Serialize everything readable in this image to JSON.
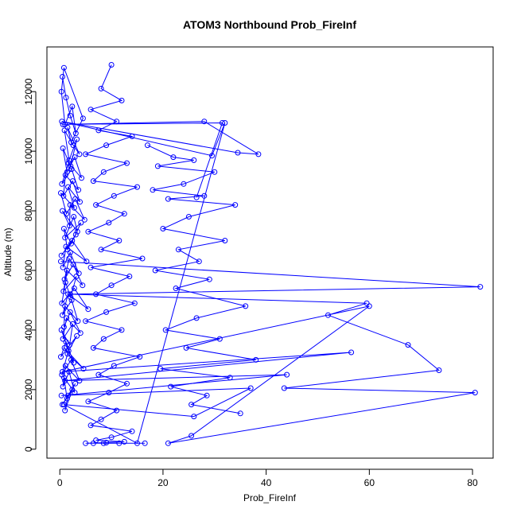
{
  "chart_data": {
    "type": "line",
    "title": "ATOM3 Northbound Prob_FireInf",
    "xlabel": "Prob_FireInf",
    "ylabel": "Altitude (m)",
    "xlim": [
      -2.5,
      84
    ],
    "ylim": [
      -300,
      13500
    ],
    "x_ticks": [
      0,
      20,
      40,
      60,
      80
    ],
    "y_ticks": [
      0,
      2000,
      4000,
      6000,
      8000,
      10000,
      12000
    ],
    "grid": false,
    "legend": "none",
    "markers": "open-circle",
    "series_color": "#0000ff",
    "series": [
      {
        "x": [
          0.5,
          1.2,
          2.0,
          3.1,
          2.4,
          1.0,
          0.3,
          0.8,
          4.5,
          2.2,
          1.5,
          3.8,
          2.6,
          0.9,
          1.8,
          3.3,
          2.1,
          0.6,
          1.4,
          2.9,
          4.2,
          1.7,
          0.4,
          2.3,
          3.6,
          1.1,
          0.7,
          2.5,
          3.9,
          1.6,
          2.8,
          0.2,
          1.3,
          3.0,
          4.8,
          2.0,
          1.9,
          0.5,
          3.4,
          2.7,
          1.0,
          4.1,
          2.2,
          0.8,
          1.5,
          3.1,
          0.3,
          2.4,
          5.2,
          1.2,
          0.6,
          2.0,
          3.7,
          1.8,
          0.9,
          2.6,
          4.4,
          1.4,
          0.7,
          3.2,
          2.1,
          1.1,
          0.4,
          2.8,
          5.5,
          1.6,
          0.5,
          2.3,
          3.5,
          1.0,
          0.8,
          2.0,
          4.0,
          1.3,
          0.6,
          2.5,
          1.9,
          0.3,
          1.7,
          3.3,
          0.2,
          1.2,
          2.7,
          0.9,
          4.6,
          1.5,
          0.4,
          2.2,
          3.8,
          1.1,
          0.6,
          1.8,
          2.9,
          0.8,
          1.4,
          3.0,
          0.5,
          2.4,
          1.0,
          1.6
        ],
        "y": [
          12500,
          11800,
          11200,
          10600,
          11500,
          10900,
          12000,
          12800,
          11100,
          10300,
          10800,
          9900,
          10200,
          10700,
          9700,
          10400,
          9500,
          10100,
          9300,
          9800,
          9100,
          9600,
          8900,
          9400,
          8700,
          9200,
          8500,
          9000,
          8300,
          8800,
          8100,
          8600,
          7900,
          8400,
          7700,
          8200,
          7500,
          8000,
          7300,
          7800,
          7100,
          7600,
          6900,
          7400,
          6700,
          7200,
          6500,
          7000,
          6300,
          6800,
          6100,
          6600,
          5900,
          6400,
          5700,
          6200,
          5500,
          6000,
          5300,
          5800,
          5100,
          5600,
          4900,
          5400,
          4700,
          5200,
          4500,
          5000,
          4300,
          4800,
          4100,
          4600,
          3900,
          4400,
          3700,
          4200,
          3500,
          4000,
          3300,
          3800,
          3100,
          3600,
          2900,
          3400,
          2700,
          3200,
          2500,
          3000,
          2300,
          2800,
          2100,
          2600,
          1900,
          2400,
          1700,
          2200,
          1500,
          2000,
          1300,
          1800
        ]
      },
      {
        "x": [
          10.0,
          8.0,
          12.0,
          6.0,
          11.0,
          7.5,
          14.0,
          9.0,
          5.0,
          13.0,
          8.5,
          6.5,
          15.0,
          10.5,
          7.0,
          12.5,
          9.5,
          5.5,
          11.5,
          8.0,
          16.0,
          6.0,
          13.5,
          10.0,
          7.0,
          14.5,
          9.0,
          5.0,
          12.0,
          8.5,
          6.5,
          15.5,
          10.5,
          7.5,
          13.0,
          9.5,
          5.5,
          11.0,
          8.0,
          6.0,
          14.0,
          10.0,
          7.0,
          12.5,
          9.0,
          5.0,
          16.5,
          8.5,
          6.5,
          11.5
        ],
        "y": [
          12900,
          12100,
          11700,
          11400,
          11000,
          10700,
          10500,
          10200,
          9900,
          9600,
          9300,
          9000,
          8800,
          8500,
          8200,
          7900,
          7600,
          7300,
          7000,
          6700,
          6400,
          6100,
          5800,
          5500,
          5200,
          4900,
          4600,
          4300,
          4000,
          3700,
          3400,
          3100,
          2800,
          2500,
          2200,
          1900,
          1600,
          1300,
          1000,
          800,
          600,
          400,
          300,
          250,
          220,
          200,
          200,
          200,
          200,
          200
        ]
      },
      {
        "x": [
          17.0,
          22.0,
          26.0,
          19.0,
          30.0,
          24.0,
          18.0,
          28.0,
          21.0,
          34.0,
          25.0,
          20.0,
          32.0,
          23.0,
          27.0,
          18.5,
          29.0,
          22.5,
          36.0,
          26.5,
          20.5,
          31.0,
          24.5,
          38.0,
          19.5,
          33.0,
          21.5,
          28.5,
          25.5,
          35.0
        ],
        "y": [
          10200,
          9800,
          9700,
          9500,
          9300,
          8900,
          8700,
          8500,
          8400,
          8200,
          7800,
          7400,
          7000,
          6700,
          6300,
          6000,
          5700,
          5400,
          4800,
          4400,
          4000,
          3700,
          3400,
          3000,
          2700,
          2400,
          2100,
          1800,
          1500,
          1200
        ]
      },
      {
        "x": [
          0.2,
          81.5,
          2.0,
          59.5,
          52.0,
          67.5,
          73.5,
          43.5,
          80.5,
          21.0,
          25.5,
          60.0,
          0.5,
          56.5,
          1.0,
          44.0,
          0.3,
          37.0,
          26.0,
          0.8,
          15.0,
          32.0,
          29.5,
          0.4,
          34.5,
          38.5,
          28.0,
          0.6,
          31.5,
          26.5
        ],
        "y": [
          6300,
          5450,
          5200,
          4900,
          4500,
          3500,
          2650,
          2050,
          1900,
          200,
          450,
          4800,
          2600,
          3250,
          2300,
          2500,
          1800,
          2050,
          1100,
          1500,
          200,
          10950,
          9850,
          11000,
          9950,
          9900,
          11000,
          10900,
          10950,
          8450
        ]
      }
    ]
  }
}
